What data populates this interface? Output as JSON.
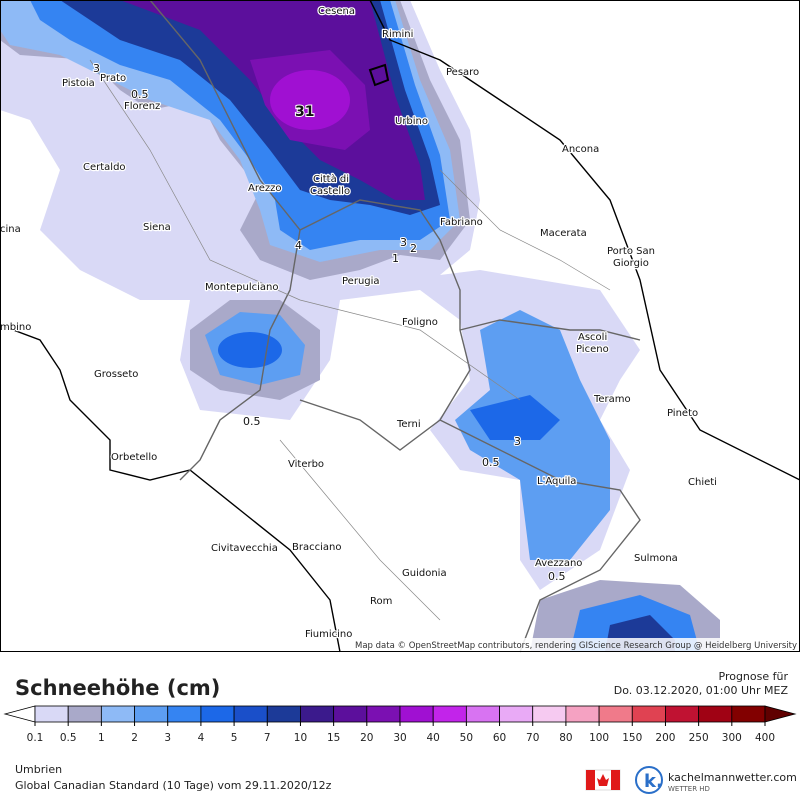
{
  "map": {
    "cities": [
      "Cesena",
      "Rimini",
      "Pesaro",
      "Prato",
      "Pistoia",
      "Florenz",
      "Urbino",
      "Ancona",
      "Certaldo",
      "Arezzo",
      [
        "Città di",
        "Castello"
      ],
      "Fabriano",
      "Siena",
      "cina",
      "Macerata",
      [
        "Porto San",
        "Giorgio"
      ],
      "Montepulciano",
      "Perugia",
      "Foligno",
      "mbino",
      [
        "Ascoli",
        "Piceno"
      ],
      "Grosseto",
      "Teramo",
      "Pineto",
      "Terni",
      "Orbetello",
      "Viterbo",
      "L'Aquila",
      "Chieti",
      "Avezzano",
      "Sulmona",
      "Civitavecchia",
      "Bracciano",
      "Guidonia",
      "Rom",
      "Fiumicino"
    ],
    "contour_labels": [
      31,
      3,
      0.5,
      4,
      3,
      2,
      1,
      0.5,
      3,
      0.5,
      0.5
    ],
    "attribution": "Map data © OpenStreetMap contributors, rendering GIScience Research Group @ Heidelberg University"
  },
  "legend": {
    "title": "Schneehöhe (cm)",
    "forecast_label": "Prognose für",
    "forecast_time": "Do. 03.12.2020, 01:00 Uhr MEZ",
    "ticks": [
      0.1,
      0.5,
      1,
      2,
      3,
      4,
      5,
      7,
      10,
      15,
      20,
      30,
      40,
      50,
      60,
      70,
      80,
      100,
      150,
      200,
      250,
      300,
      400
    ],
    "colors": [
      "#ffffff",
      "#d9d9f6",
      "#a9a9c9",
      "#8ebaf6",
      "#5d9ef2",
      "#3584f2",
      "#1c68e8",
      "#1a4fc9",
      "#1c3a98",
      "#3b1a8c",
      "#5c0f9c",
      "#7b10b2",
      "#a010d2",
      "#c224ea",
      "#d873f2",
      "#e9aaf6",
      "#f6caf1",
      "#f5a2c2",
      "#f07a8a",
      "#e04252",
      "#c01232",
      "#a00214",
      "#820000",
      "#600000"
    ]
  },
  "footer": {
    "region": "Umbrien",
    "model": "Global Canadian Standard (10 Tage) vom 29.11.2020/12z",
    "brand": "kachelmannwetter.com",
    "brand_sub": "WETTER HD"
  }
}
